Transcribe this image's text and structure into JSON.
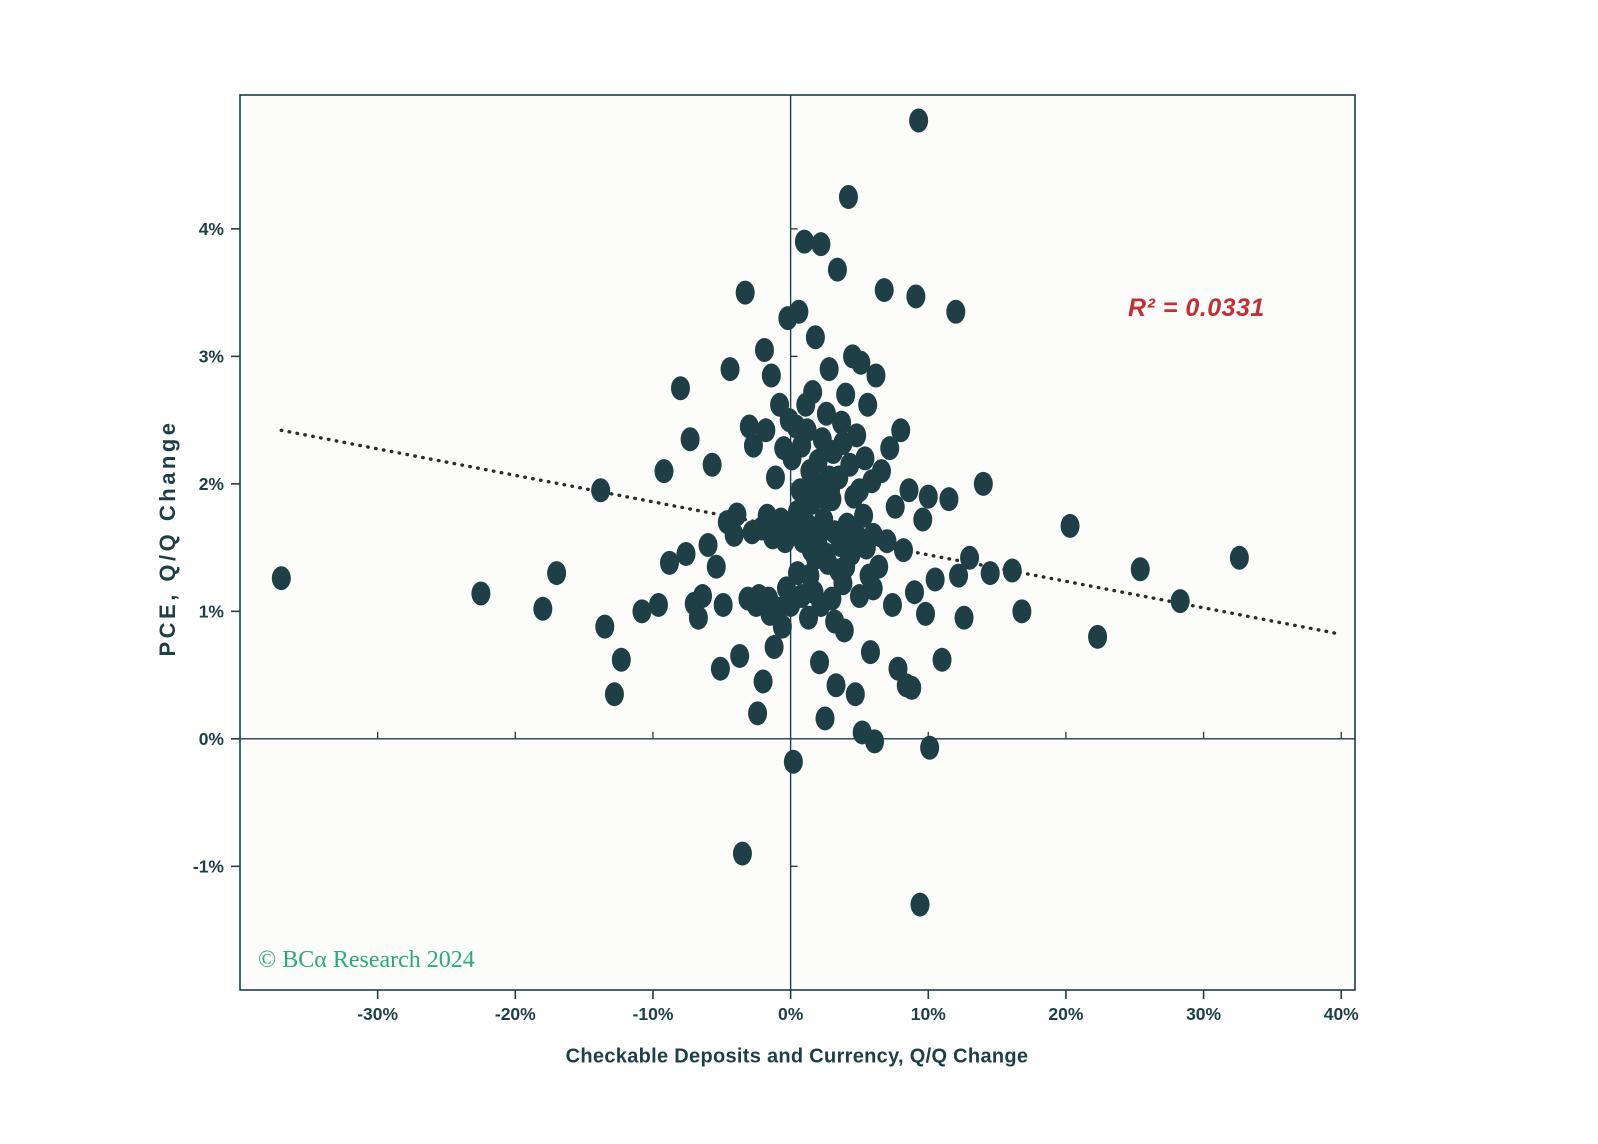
{
  "chart_data": {
    "type": "scatter",
    "title": "",
    "xlabel": "Checkable Deposits and Currency, Q/Q Change",
    "ylabel": "PCE, Q/Q Change",
    "x_ticks": [
      -30,
      -20,
      -10,
      0,
      10,
      20,
      30,
      40
    ],
    "y_ticks": [
      -1,
      0,
      1,
      2,
      3,
      4
    ],
    "xlim": [
      -40,
      41
    ],
    "ylim": [
      -1.97,
      5.05
    ],
    "tick_suffix": "%",
    "grid": false,
    "legend": "none",
    "axis_color": "#1d3f45",
    "point_color": "#1d3f45",
    "plot_bg_color": "#fcfcfa",
    "trendline": {
      "style": "dotted",
      "color": "#2b2b2b",
      "x1": -37.0,
      "y1": 2.42,
      "x2": 40.0,
      "y2": 0.82
    },
    "annotation": {
      "text": "R² = 0.0331",
      "color": "#c22f35"
    },
    "watermark": {
      "text": "© BCα Research 2024",
      "color": "#2bab7c"
    },
    "points": [
      [
        -37.0,
        1.26
      ],
      [
        -22.5,
        1.14
      ],
      [
        -18.0,
        1.02
      ],
      [
        -17.0,
        1.3
      ],
      [
        -13.8,
        1.95
      ],
      [
        -13.5,
        0.88
      ],
      [
        -12.8,
        0.35
      ],
      [
        -12.3,
        0.62
      ],
      [
        -10.8,
        1.0
      ],
      [
        -9.6,
        1.05
      ],
      [
        -9.2,
        2.1
      ],
      [
        -8.8,
        1.38
      ],
      [
        -8.0,
        2.75
      ],
      [
        -7.6,
        1.45
      ],
      [
        -7.3,
        2.35
      ],
      [
        -7.0,
        1.06
      ],
      [
        -6.7,
        0.95
      ],
      [
        -6.4,
        1.12
      ],
      [
        -6.0,
        1.52
      ],
      [
        -5.7,
        2.15
      ],
      [
        -5.4,
        1.35
      ],
      [
        -5.1,
        0.55
      ],
      [
        -4.9,
        1.05
      ],
      [
        -4.6,
        1.7
      ],
      [
        -4.4,
        2.9
      ],
      [
        -4.1,
        1.6
      ],
      [
        -3.9,
        1.76
      ],
      [
        -3.7,
        0.65
      ],
      [
        -3.5,
        -0.9
      ],
      [
        -3.3,
        3.5
      ],
      [
        -3.1,
        1.1
      ],
      [
        -3.0,
        2.45
      ],
      [
        -2.8,
        1.62
      ],
      [
        -2.7,
        2.3
      ],
      [
        -2.5,
        1.05
      ],
      [
        -2.4,
        0.2
      ],
      [
        -2.3,
        1.12
      ],
      [
        -2.1,
        1.65
      ],
      [
        -2.0,
        0.45
      ],
      [
        -1.9,
        3.05
      ],
      [
        -1.8,
        2.42
      ],
      [
        -1.7,
        1.75
      ],
      [
        -1.6,
        1.1
      ],
      [
        -1.5,
        0.98
      ],
      [
        -1.4,
        2.85
      ],
      [
        -1.3,
        1.58
      ],
      [
        -1.2,
        0.72
      ],
      [
        -1.1,
        2.05
      ],
      [
        -1.0,
        1.65
      ],
      [
        -0.9,
        1.02
      ],
      [
        -0.8,
        2.62
      ],
      [
        -0.7,
        1.72
      ],
      [
        -0.6,
        0.88
      ],
      [
        -0.5,
        2.28
      ],
      [
        -0.4,
        1.55
      ],
      [
        -0.3,
        1.18
      ],
      [
        -0.2,
        3.3
      ],
      [
        -0.1,
        2.5
      ],
      [
        0.0,
        1.65
      ],
      [
        0.0,
        1.05
      ],
      [
        0.1,
        2.2
      ],
      [
        0.2,
        -0.18
      ],
      [
        0.3,
        1.62
      ],
      [
        0.4,
        2.45
      ],
      [
        0.5,
        1.3
      ],
      [
        0.6,
        3.35
      ],
      [
        0.7,
        1.95
      ],
      [
        0.8,
        2.3
      ],
      [
        0.9,
        1.55
      ],
      [
        1.0,
        3.9
      ],
      [
        1.1,
        2.62
      ],
      [
        1.2,
        1.68
      ],
      [
        1.3,
        0.95
      ],
      [
        1.4,
        2.1
      ],
      [
        1.5,
        1.48
      ],
      [
        1.6,
        2.72
      ],
      [
        1.7,
        1.15
      ],
      [
        1.8,
        3.15
      ],
      [
        1.9,
        2.0
      ],
      [
        2.0,
        1.58
      ],
      [
        2.1,
        0.6
      ],
      [
        2.2,
        3.88
      ],
      [
        2.3,
        2.35
      ],
      [
        2.4,
        1.72
      ],
      [
        2.5,
        0.16
      ],
      [
        2.6,
        2.55
      ],
      [
        2.7,
        1.38
      ],
      [
        2.8,
        2.9
      ],
      [
        2.9,
        1.95
      ],
      [
        3.0,
        1.1
      ],
      [
        3.1,
        2.25
      ],
      [
        3.2,
        1.62
      ],
      [
        3.3,
        0.42
      ],
      [
        3.4,
        3.68
      ],
      [
        3.5,
        2.05
      ],
      [
        3.6,
        1.52
      ],
      [
        3.7,
        2.48
      ],
      [
        3.8,
        1.22
      ],
      [
        3.9,
        0.85
      ],
      [
        4.0,
        2.7
      ],
      [
        4.1,
        1.68
      ],
      [
        4.2,
        4.25
      ],
      [
        4.3,
        2.15
      ],
      [
        4.4,
        1.45
      ],
      [
        4.5,
        3.0
      ],
      [
        4.6,
        1.9
      ],
      [
        4.7,
        0.35
      ],
      [
        4.8,
        2.38
      ],
      [
        4.9,
        1.58
      ],
      [
        5.0,
        1.12
      ],
      [
        5.1,
        2.95
      ],
      [
        5.2,
        0.05
      ],
      [
        5.3,
        1.75
      ],
      [
        5.4,
        2.2
      ],
      [
        5.5,
        1.5
      ],
      [
        5.6,
        2.62
      ],
      [
        5.7,
        1.28
      ],
      [
        5.8,
        0.68
      ],
      [
        5.9,
        2.02
      ],
      [
        6.0,
        1.6
      ],
      [
        6.1,
        -0.02
      ],
      [
        6.2,
        2.85
      ],
      [
        6.4,
        1.35
      ],
      [
        6.6,
        2.1
      ],
      [
        6.8,
        3.52
      ],
      [
        7.0,
        1.55
      ],
      [
        7.2,
        2.28
      ],
      [
        7.4,
        1.05
      ],
      [
        7.6,
        1.82
      ],
      [
        7.8,
        0.55
      ],
      [
        8.0,
        2.42
      ],
      [
        8.2,
        1.48
      ],
      [
        8.4,
        0.42
      ],
      [
        8.6,
        1.95
      ],
      [
        8.8,
        0.4
      ],
      [
        9.0,
        1.15
      ],
      [
        9.1,
        3.47
      ],
      [
        9.3,
        4.85
      ],
      [
        9.4,
        -1.3
      ],
      [
        9.6,
        1.72
      ],
      [
        9.8,
        0.98
      ],
      [
        10.0,
        1.9
      ],
      [
        10.1,
        -0.07
      ],
      [
        10.5,
        1.25
      ],
      [
        11.0,
        0.62
      ],
      [
        11.5,
        1.88
      ],
      [
        12.0,
        3.35
      ],
      [
        12.2,
        1.28
      ],
      [
        12.6,
        0.95
      ],
      [
        13.0,
        1.42
      ],
      [
        14.0,
        2.0
      ],
      [
        14.5,
        1.3
      ],
      [
        16.1,
        1.32
      ],
      [
        16.8,
        1.0
      ],
      [
        20.3,
        1.67
      ],
      [
        22.3,
        0.8
      ],
      [
        25.4,
        1.33
      ],
      [
        28.3,
        1.08
      ],
      [
        32.6,
        1.42
      ],
      [
        1.0,
        1.62
      ],
      [
        1.5,
        1.85
      ],
      [
        2.0,
        2.18
      ],
      [
        2.5,
        1.45
      ],
      [
        3.0,
        1.88
      ],
      [
        3.5,
        1.32
      ],
      [
        1.2,
        2.42
      ],
      [
        2.8,
        2.05
      ],
      [
        4.0,
        1.35
      ],
      [
        4.5,
        1.62
      ],
      [
        0.5,
        1.78
      ],
      [
        1.8,
        1.42
      ],
      [
        2.2,
        1.05
      ],
      [
        3.2,
        0.92
      ],
      [
        0.8,
        1.12
      ],
      [
        5.0,
        1.95
      ],
      [
        6.0,
        1.18
      ],
      [
        2.6,
        1.88
      ],
      [
        1.4,
        1.28
      ],
      [
        3.8,
        2.32
      ]
    ]
  }
}
